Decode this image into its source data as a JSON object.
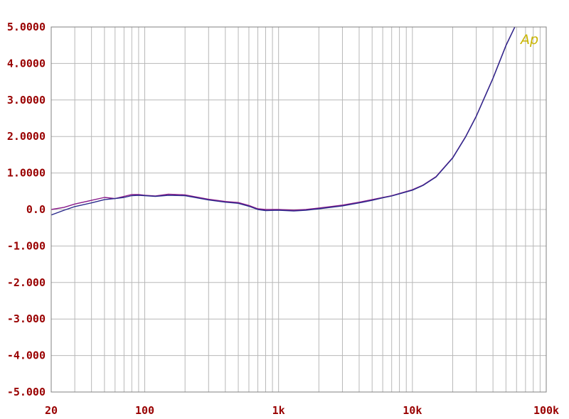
{
  "chart_data": {
    "type": "line",
    "title": "",
    "xlabel": "",
    "ylabel": "",
    "x_scale": "log",
    "xlim": [
      20,
      100000
    ],
    "ylim": [
      -5,
      5
    ],
    "grid": true,
    "y_ticks": [
      {
        "value": 5,
        "label": "5.0000"
      },
      {
        "value": 4,
        "label": "4.0000"
      },
      {
        "value": 3,
        "label": "3.0000"
      },
      {
        "value": 2,
        "label": "2.0000"
      },
      {
        "value": 1,
        "label": "1.0000"
      },
      {
        "value": 0,
        "label": "0.0"
      },
      {
        "value": -1,
        "label": "-1.000"
      },
      {
        "value": -2,
        "label": "-2.000"
      },
      {
        "value": -3,
        "label": "-3.000"
      },
      {
        "value": -4,
        "label": "-4.000"
      },
      {
        "value": -5,
        "label": "-5.000"
      }
    ],
    "x_ticks": [
      {
        "value": 20,
        "label": "20"
      },
      {
        "value": 100,
        "label": "100"
      },
      {
        "value": 1000,
        "label": "1k"
      },
      {
        "value": 10000,
        "label": "10k"
      },
      {
        "value": 100000,
        "label": "100k"
      }
    ],
    "series": [
      {
        "color": "#8a1a8a",
        "x": [
          20,
          25,
          30,
          40,
          50,
          60,
          70,
          80,
          90,
          100,
          120,
          150,
          200,
          300,
          400,
          500,
          600,
          700,
          800,
          1000,
          1300,
          1600,
          2000,
          3000,
          4000,
          5000,
          6000,
          7000,
          8000,
          10000,
          12000,
          15000,
          20000,
          25000,
          30000,
          40000,
          50000,
          60000
        ],
        "values": [
          0.0,
          0.06,
          0.15,
          0.25,
          0.33,
          0.3,
          0.36,
          0.41,
          0.41,
          0.39,
          0.37,
          0.42,
          0.4,
          0.28,
          0.22,
          0.19,
          0.11,
          0.02,
          0.0,
          0.0,
          -0.02,
          0.0,
          0.04,
          0.12,
          0.2,
          0.27,
          0.33,
          0.38,
          0.44,
          0.54,
          0.67,
          0.9,
          1.42,
          2.0,
          2.56,
          3.6,
          4.5,
          5.1
        ]
      },
      {
        "color": "#2a2a8c",
        "x": [
          20,
          25,
          30,
          40,
          50,
          60,
          70,
          80,
          90,
          100,
          120,
          150,
          200,
          300,
          400,
          500,
          600,
          700,
          800,
          1000,
          1300,
          1600,
          2000,
          3000,
          4000,
          5000,
          6000,
          7000,
          8000,
          10000,
          12000,
          15000,
          20000,
          25000,
          30000,
          40000,
          50000,
          60000
        ],
        "values": [
          -0.15,
          -0.02,
          0.08,
          0.18,
          0.27,
          0.3,
          0.33,
          0.38,
          0.39,
          0.38,
          0.36,
          0.39,
          0.38,
          0.26,
          0.2,
          0.17,
          0.09,
          0.0,
          -0.03,
          -0.02,
          -0.04,
          -0.02,
          0.02,
          0.1,
          0.18,
          0.25,
          0.32,
          0.37,
          0.43,
          0.53,
          0.66,
          0.89,
          1.41,
          1.99,
          2.55,
          3.59,
          4.49,
          5.1
        ]
      }
    ]
  },
  "branding": {
    "logo_text": "Ap",
    "logo_color": "#c8b400"
  },
  "colors": {
    "tick_label": "#990000",
    "grid": "#b8b8b8",
    "border": "#808080"
  }
}
